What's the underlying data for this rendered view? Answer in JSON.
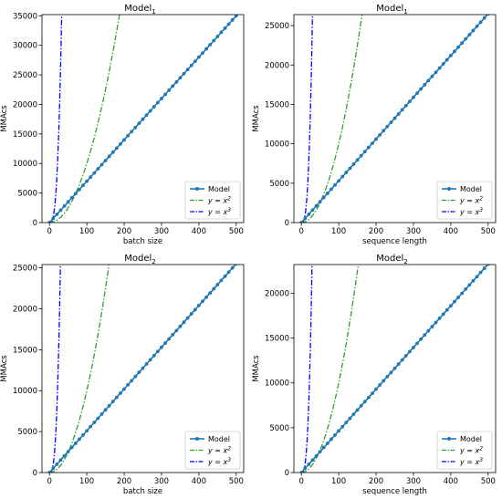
{
  "colors": {
    "model": "#1f77b4",
    "x2": "#2ca02c",
    "x3": "#0000ff",
    "frame": "#000000",
    "legend_border": "#cccccc"
  },
  "chart_data": [
    {
      "type": "line",
      "title": "Model",
      "title_sub": "1",
      "xlabel": "batch size",
      "ylabel": "MMAcs",
      "xlim": [
        -20,
        520
      ],
      "ylim": [
        0,
        35200
      ],
      "xticks": [
        0,
        100,
        200,
        300,
        400,
        500
      ],
      "yticks": [
        0,
        5000,
        10000,
        15000,
        20000,
        25000,
        30000,
        35000
      ],
      "model_slope": 70,
      "marker_step": 10,
      "x_max": 500,
      "legend_position": "lower right",
      "series": [
        {
          "name": "Model",
          "kind": "model",
          "style": "solid-markers"
        },
        {
          "name": "y = x^2",
          "label": "y = x",
          "sup": "2",
          "kind": "x2",
          "style": "dashdot"
        },
        {
          "name": "y = x^3",
          "label": "y = x",
          "sup": "3",
          "kind": "x3",
          "style": "dashdot"
        }
      ]
    },
    {
      "type": "line",
      "title": "Model",
      "title_sub": "1",
      "xlabel": "sequence length",
      "ylabel": "MMAcs",
      "xlim": [
        -20,
        520
      ],
      "ylim": [
        0,
        26400
      ],
      "xticks": [
        0,
        100,
        200,
        300,
        400,
        500
      ],
      "yticks": [
        0,
        5000,
        10000,
        15000,
        20000,
        25000
      ],
      "model_slope": 53,
      "marker_step": 10,
      "x_max": 500,
      "legend_position": "lower right",
      "series": [
        {
          "name": "Model",
          "kind": "model",
          "style": "solid-markers"
        },
        {
          "name": "y = x^2",
          "label": "y = x",
          "sup": "2",
          "kind": "x2",
          "style": "dashdot"
        },
        {
          "name": "y = x^3",
          "label": "y = x",
          "sup": "3",
          "kind": "x3",
          "style": "dashdot"
        }
      ]
    },
    {
      "type": "line",
      "title": "Model",
      "title_sub": "2",
      "xlabel": "batch size",
      "ylabel": "MMAcs",
      "xlim": [
        -20,
        520
      ],
      "ylim": [
        0,
        25400
      ],
      "xticks": [
        0,
        100,
        200,
        300,
        400,
        500
      ],
      "yticks": [
        0,
        5000,
        10000,
        15000,
        20000,
        25000
      ],
      "model_slope": 51,
      "marker_step": 10,
      "x_max": 500,
      "legend_position": "lower right",
      "series": [
        {
          "name": "Model",
          "kind": "model",
          "style": "solid-markers"
        },
        {
          "name": "y = x^2",
          "label": "y = x",
          "sup": "2",
          "kind": "x2",
          "style": "dashdot"
        },
        {
          "name": "y = x^3",
          "label": "y = x",
          "sup": "3",
          "kind": "x3",
          "style": "dashdot"
        }
      ]
    },
    {
      "type": "line",
      "title": "Model",
      "title_sub": "2",
      "xlabel": "sequence length",
      "ylabel": "MMAcs",
      "xlim": [
        -20,
        520
      ],
      "ylim": [
        0,
        23200
      ],
      "xticks": [
        0,
        100,
        200,
        300,
        400,
        500
      ],
      "yticks": [
        0,
        5000,
        10000,
        15000,
        20000
      ],
      "model_slope": 46.5,
      "marker_step": 10,
      "x_max": 500,
      "legend_position": "lower right",
      "series": [
        {
          "name": "Model",
          "kind": "model",
          "style": "solid-markers"
        },
        {
          "name": "y = x^2",
          "label": "y = x",
          "sup": "2",
          "kind": "x2",
          "style": "dashdot"
        },
        {
          "name": "y = x^3",
          "label": "y = x",
          "sup": "3",
          "kind": "x3",
          "style": "dashdot"
        }
      ]
    }
  ]
}
